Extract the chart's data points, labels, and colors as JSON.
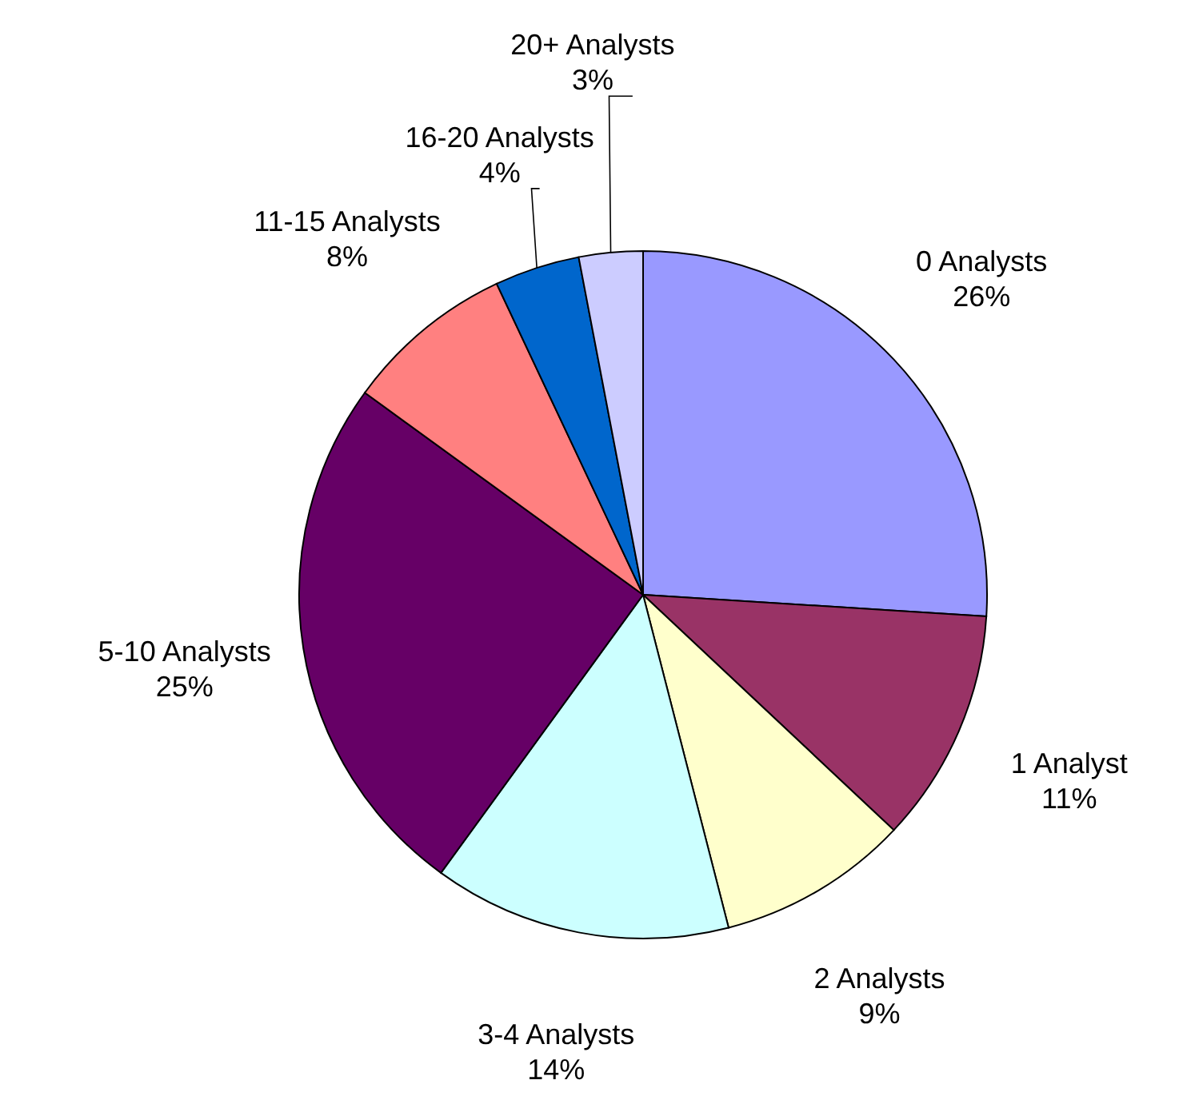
{
  "chart_data": {
    "type": "pie",
    "categories": [
      "0 Analysts",
      "1 Analyst",
      "2 Analysts",
      "3-4 Analysts",
      "5-10 Analysts",
      "11-15 Analysts",
      "16-20 Analysts",
      "20+ Analysts"
    ],
    "values": [
      26,
      11,
      9,
      14,
      25,
      8,
      4,
      3
    ],
    "colors": [
      "#9999ff",
      "#993366",
      "#ffffcc",
      "#ccffff",
      "#660066",
      "#ff8080",
      "#0066cc",
      "#ccccff"
    ],
    "value_labels": [
      "26%",
      "11%",
      "9%",
      "14%",
      "25%",
      "8%",
      "4%",
      "3%"
    ]
  }
}
